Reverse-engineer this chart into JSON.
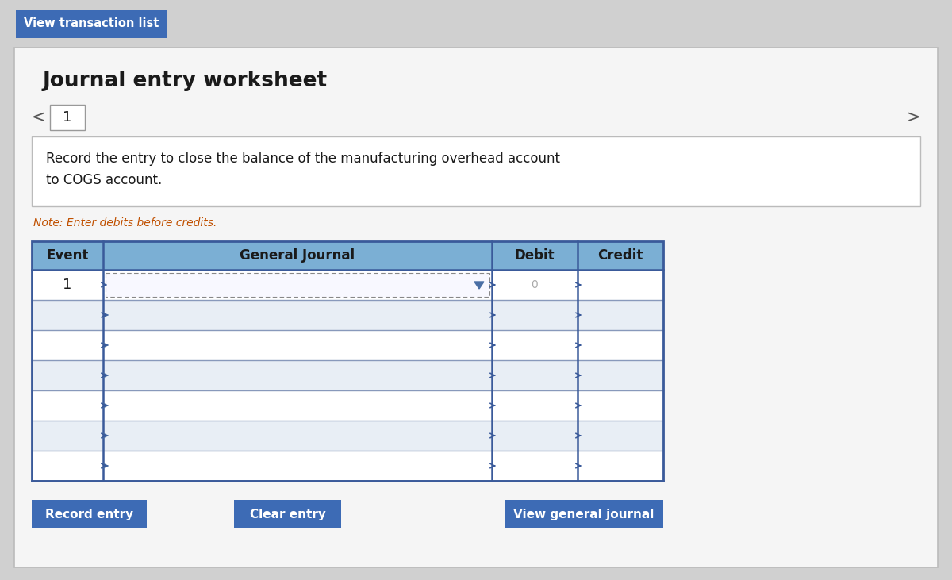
{
  "bg_color": "#d0d0d0",
  "card_bg": "#f5f5f5",
  "card_border": "#bbbbbb",
  "btn_blue_bg": "#3d6bb5",
  "btn_blue_text": "#ffffff",
  "title": "Journal entry worksheet",
  "view_transaction_btn": "View transaction list",
  "note_text": "Note: Enter debits before credits.",
  "note_color": "#c05000",
  "description_line1": "Record the entry to close the balance of the manufacturing overhead account",
  "description_line2": "to COGS account.",
  "page_number": "1",
  "col_headers": [
    "Event",
    "General Journal",
    "Debit",
    "Credit"
  ],
  "num_data_rows": 7,
  "btn_record": "Record entry",
  "btn_clear": "Clear entry",
  "btn_view": "View general journal",
  "table_header_bg": "#7bafd4",
  "table_row_bg_white": "#ffffff",
  "table_row_bg_light": "#e8eef5",
  "table_border_dark": "#3a5a9a",
  "table_border_light": "#8899bb",
  "nav_arrow_color": "#555555",
  "tab_border": "#999999"
}
